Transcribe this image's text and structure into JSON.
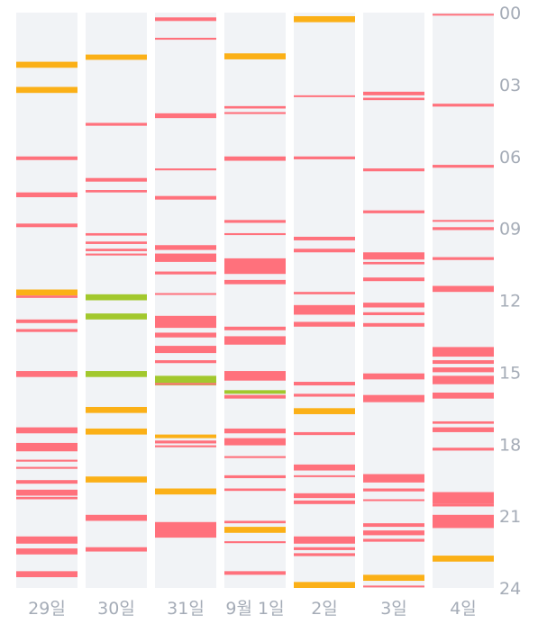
{
  "colors": {
    "red": "#ff717c",
    "orange": "#fbb017",
    "green": "#a2c82d",
    "column_background": "#f1f3f6",
    "label_text": "#a5acb7"
  },
  "chart_data": {
    "type": "timeline",
    "title": "",
    "xlabel": "",
    "ylabel": "",
    "categories": [
      "29일",
      "30일",
      "31일",
      "9월 1일",
      "2일",
      "3일",
      "4일"
    ],
    "y_ticks": [
      "00",
      "03",
      "06",
      "09",
      "12",
      "15",
      "18",
      "21",
      "24"
    ],
    "ylim": [
      0,
      24
    ],
    "y_axis_position": "right",
    "grid": false,
    "series": [
      {
        "day": "29일",
        "events": [
          {
            "hour": 2.05,
            "color": "orange",
            "duration": 0.25
          },
          {
            "hour": 3.1,
            "color": "orange",
            "duration": 0.25
          },
          {
            "hour": 6.0,
            "color": "red",
            "duration": 0.15
          },
          {
            "hour": 7.5,
            "color": "red",
            "duration": 0.2
          },
          {
            "hour": 8.8,
            "color": "red",
            "duration": 0.15
          },
          {
            "hour": 11.55,
            "color": "orange",
            "duration": 0.25
          },
          {
            "hour": 11.8,
            "color": "red",
            "duration": 0.1
          },
          {
            "hour": 12.8,
            "color": "red",
            "duration": 0.15
          },
          {
            "hour": 13.2,
            "color": "red",
            "duration": 0.12
          },
          {
            "hour": 14.95,
            "color": "red",
            "duration": 0.25
          },
          {
            "hour": 17.3,
            "color": "red",
            "duration": 0.25
          },
          {
            "hour": 17.95,
            "color": "red",
            "duration": 0.35
          },
          {
            "hour": 18.65,
            "color": "red",
            "duration": 0.08
          },
          {
            "hour": 18.95,
            "color": "red",
            "duration": 0.08
          },
          {
            "hour": 19.5,
            "color": "red",
            "duration": 0.15
          },
          {
            "hour": 19.9,
            "color": "red",
            "duration": 0.25
          },
          {
            "hour": 20.2,
            "color": "red",
            "duration": 0.1
          },
          {
            "hour": 21.85,
            "color": "red",
            "duration": 0.3
          },
          {
            "hour": 22.35,
            "color": "red",
            "duration": 0.25
          },
          {
            "hour": 23.3,
            "color": "red",
            "duration": 0.25
          }
        ]
      },
      {
        "day": "30일",
        "events": [
          {
            "hour": 1.75,
            "color": "orange",
            "duration": 0.22
          },
          {
            "hour": 4.6,
            "color": "red",
            "duration": 0.12
          },
          {
            "hour": 6.9,
            "color": "red",
            "duration": 0.15
          },
          {
            "hour": 7.4,
            "color": "red",
            "duration": 0.1
          },
          {
            "hour": 9.2,
            "color": "red",
            "duration": 0.1
          },
          {
            "hour": 9.55,
            "color": "red",
            "duration": 0.1
          },
          {
            "hour": 9.85,
            "color": "red",
            "duration": 0.1
          },
          {
            "hour": 10.05,
            "color": "red",
            "duration": 0.08
          },
          {
            "hour": 11.75,
            "color": "green",
            "duration": 0.25
          },
          {
            "hour": 12.55,
            "color": "green",
            "duration": 0.25
          },
          {
            "hour": 14.95,
            "color": "green",
            "duration": 0.25
          },
          {
            "hour": 16.45,
            "color": "orange",
            "duration": 0.25
          },
          {
            "hour": 17.35,
            "color": "orange",
            "duration": 0.25
          },
          {
            "hour": 19.35,
            "color": "orange",
            "duration": 0.25
          },
          {
            "hour": 20.95,
            "color": "red",
            "duration": 0.25
          },
          {
            "hour": 22.3,
            "color": "red",
            "duration": 0.18
          }
        ]
      },
      {
        "day": "31일",
        "events": [
          {
            "hour": 0.2,
            "color": "red",
            "duration": 0.15
          },
          {
            "hour": 1.05,
            "color": "red",
            "duration": 0.08
          },
          {
            "hour": 4.2,
            "color": "red",
            "duration": 0.2
          },
          {
            "hour": 6.5,
            "color": "red",
            "duration": 0.08
          },
          {
            "hour": 7.65,
            "color": "red",
            "duration": 0.15
          },
          {
            "hour": 9.7,
            "color": "red",
            "duration": 0.2
          },
          {
            "hour": 10.05,
            "color": "red",
            "duration": 0.35
          },
          {
            "hour": 10.8,
            "color": "red",
            "duration": 0.12
          },
          {
            "hour": 11.7,
            "color": "red",
            "duration": 0.06
          },
          {
            "hour": 12.65,
            "color": "red",
            "duration": 0.5
          },
          {
            "hour": 13.35,
            "color": "red",
            "duration": 0.2
          },
          {
            "hour": 13.9,
            "color": "red",
            "duration": 0.3
          },
          {
            "hour": 14.5,
            "color": "red",
            "duration": 0.12
          },
          {
            "hour": 15.15,
            "color": "green",
            "duration": 0.4
          },
          {
            "hour": 15.45,
            "color": "red",
            "duration": 0.08
          },
          {
            "hour": 17.6,
            "color": "orange",
            "duration": 0.15
          },
          {
            "hour": 17.85,
            "color": "red",
            "duration": 0.12
          },
          {
            "hour": 18.05,
            "color": "red",
            "duration": 0.08
          },
          {
            "hour": 19.85,
            "color": "orange",
            "duration": 0.25
          },
          {
            "hour": 21.25,
            "color": "red",
            "duration": 0.65
          },
          {
            "hour": 21.6,
            "color": "red",
            "duration": 0.08
          }
        ]
      },
      {
        "day": "9월 1일",
        "events": [
          {
            "hour": 1.7,
            "color": "orange",
            "duration": 0.25
          },
          {
            "hour": 3.9,
            "color": "red",
            "duration": 0.1
          },
          {
            "hour": 4.15,
            "color": "red",
            "duration": 0.08
          },
          {
            "hour": 6.0,
            "color": "red",
            "duration": 0.18
          },
          {
            "hour": 8.65,
            "color": "red",
            "duration": 0.12
          },
          {
            "hour": 9.2,
            "color": "red",
            "duration": 0.08
          },
          {
            "hour": 10.25,
            "color": "red",
            "duration": 0.65
          },
          {
            "hour": 11.15,
            "color": "red",
            "duration": 0.18
          },
          {
            "hour": 13.1,
            "color": "red",
            "duration": 0.15
          },
          {
            "hour": 13.5,
            "color": "red",
            "duration": 0.35
          },
          {
            "hour": 14.95,
            "color": "red",
            "duration": 0.4
          },
          {
            "hour": 15.75,
            "color": "green",
            "duration": 0.15
          },
          {
            "hour": 15.95,
            "color": "red",
            "duration": 0.15
          },
          {
            "hour": 17.35,
            "color": "red",
            "duration": 0.2
          },
          {
            "hour": 17.75,
            "color": "red",
            "duration": 0.3
          },
          {
            "hour": 18.5,
            "color": "red",
            "duration": 0.08
          },
          {
            "hour": 19.3,
            "color": "red",
            "duration": 0.12
          },
          {
            "hour": 19.85,
            "color": "red",
            "duration": 0.1
          },
          {
            "hour": 21.2,
            "color": "red",
            "duration": 0.1
          },
          {
            "hour": 21.45,
            "color": "orange",
            "duration": 0.25
          },
          {
            "hour": 22.05,
            "color": "red",
            "duration": 0.08
          },
          {
            "hour": 23.3,
            "color": "red",
            "duration": 0.15
          }
        ]
      },
      {
        "day": "2일",
        "events": [
          {
            "hour": 0.15,
            "color": "orange",
            "duration": 0.25
          },
          {
            "hour": 3.45,
            "color": "red",
            "duration": 0.06
          },
          {
            "hour": 6.0,
            "color": "red",
            "duration": 0.12
          },
          {
            "hour": 9.35,
            "color": "red",
            "duration": 0.15
          },
          {
            "hour": 9.85,
            "color": "red",
            "duration": 0.15
          },
          {
            "hour": 11.65,
            "color": "red",
            "duration": 0.1
          },
          {
            "hour": 12.2,
            "color": "red",
            "duration": 0.4
          },
          {
            "hour": 12.9,
            "color": "red",
            "duration": 0.2
          },
          {
            "hour": 15.4,
            "color": "red",
            "duration": 0.15
          },
          {
            "hour": 15.9,
            "color": "red",
            "duration": 0.12
          },
          {
            "hour": 16.5,
            "color": "orange",
            "duration": 0.25
          },
          {
            "hour": 17.5,
            "color": "red",
            "duration": 0.12
          },
          {
            "hour": 18.85,
            "color": "red",
            "duration": 0.25
          },
          {
            "hour": 19.3,
            "color": "red",
            "duration": 0.06
          },
          {
            "hour": 20.05,
            "color": "red",
            "duration": 0.2
          },
          {
            "hour": 20.35,
            "color": "red",
            "duration": 0.15
          },
          {
            "hour": 21.85,
            "color": "red",
            "duration": 0.3
          },
          {
            "hour": 22.3,
            "color": "red",
            "duration": 0.12
          },
          {
            "hour": 22.55,
            "color": "red",
            "duration": 0.12
          },
          {
            "hour": 23.75,
            "color": "orange",
            "duration": 0.25
          }
        ]
      },
      {
        "day": "3일",
        "events": [
          {
            "hour": 3.3,
            "color": "red",
            "duration": 0.15
          },
          {
            "hour": 3.55,
            "color": "red",
            "duration": 0.1
          },
          {
            "hour": 6.5,
            "color": "red",
            "duration": 0.12
          },
          {
            "hour": 8.25,
            "color": "red",
            "duration": 0.12
          },
          {
            "hour": 10.0,
            "color": "red",
            "duration": 0.3
          },
          {
            "hour": 10.4,
            "color": "red",
            "duration": 0.1
          },
          {
            "hour": 11.05,
            "color": "red",
            "duration": 0.15
          },
          {
            "hour": 12.1,
            "color": "red",
            "duration": 0.2
          },
          {
            "hour": 12.5,
            "color": "red",
            "duration": 0.12
          },
          {
            "hour": 12.95,
            "color": "red",
            "duration": 0.15
          },
          {
            "hour": 15.05,
            "color": "red",
            "duration": 0.25
          },
          {
            "hour": 15.95,
            "color": "red",
            "duration": 0.3
          },
          {
            "hour": 19.25,
            "color": "red",
            "duration": 0.35
          },
          {
            "hour": 19.85,
            "color": "red",
            "duration": 0.12
          },
          {
            "hour": 20.3,
            "color": "red",
            "duration": 0.06
          },
          {
            "hour": 21.3,
            "color": "red",
            "duration": 0.15
          },
          {
            "hour": 21.6,
            "color": "red",
            "duration": 0.2
          },
          {
            "hour": 21.95,
            "color": "red",
            "duration": 0.12
          },
          {
            "hour": 23.45,
            "color": "orange",
            "duration": 0.25
          },
          {
            "hour": 23.9,
            "color": "red",
            "duration": 0.06
          }
        ]
      },
      {
        "day": "4일",
        "events": [
          {
            "hour": 0.05,
            "color": "red",
            "duration": 0.05
          },
          {
            "hour": 3.8,
            "color": "red",
            "duration": 0.12
          },
          {
            "hour": 6.35,
            "color": "red",
            "duration": 0.12
          },
          {
            "hour": 8.65,
            "color": "red",
            "duration": 0.06
          },
          {
            "hour": 8.95,
            "color": "red",
            "duration": 0.12
          },
          {
            "hour": 10.2,
            "color": "red",
            "duration": 0.12
          },
          {
            "hour": 11.4,
            "color": "red",
            "duration": 0.25
          },
          {
            "hour": 13.95,
            "color": "red",
            "duration": 0.4
          },
          {
            "hour": 14.5,
            "color": "red",
            "duration": 0.15
          },
          {
            "hour": 14.8,
            "color": "red",
            "duration": 0.2
          },
          {
            "hour": 15.15,
            "color": "red",
            "duration": 0.35
          },
          {
            "hour": 15.85,
            "color": "red",
            "duration": 0.25
          },
          {
            "hour": 17.05,
            "color": "red",
            "duration": 0.1
          },
          {
            "hour": 17.3,
            "color": "red",
            "duration": 0.2
          },
          {
            "hour": 18.15,
            "color": "red",
            "duration": 0.12
          },
          {
            "hour": 20.0,
            "color": "red",
            "duration": 0.5
          },
          {
            "hour": 20.5,
            "color": "red",
            "duration": 0.1
          },
          {
            "hour": 20.95,
            "color": "red",
            "duration": 0.55
          },
          {
            "hour": 22.65,
            "color": "orange",
            "duration": 0.25
          }
        ]
      }
    ]
  }
}
